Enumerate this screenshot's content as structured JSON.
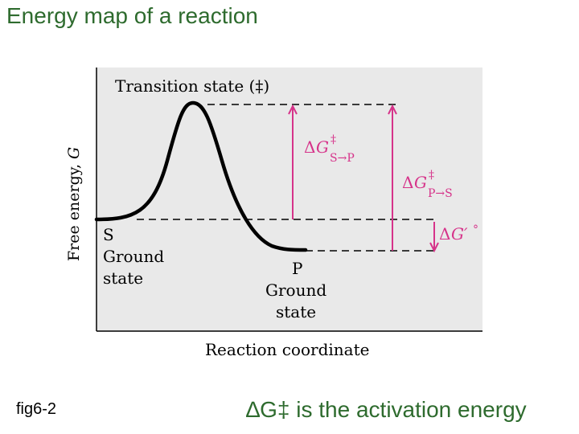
{
  "title": "Energy map of a reaction",
  "figure": {
    "y_axis_label_main": "Free energy, ",
    "y_axis_label_var": "G",
    "x_axis_label": "Reaction coordinate",
    "transition_state": "Transition state (‡)",
    "s_label": "S",
    "s_ground_line1": "Ground",
    "s_ground_line2": "state",
    "p_label": "P",
    "p_ground_line1": "Ground",
    "p_ground_line2": "state",
    "dg_s_to_p": {
      "delta": "Δ",
      "g": "G",
      "dagger": "‡",
      "sub": "S→P"
    },
    "dg_p_to_s": {
      "delta": "Δ",
      "g": "G",
      "dagger": "‡",
      "sub": "P→S"
    },
    "dg_standard": {
      "delta": "Δ",
      "g": "G′",
      "degree": "°"
    },
    "colors": {
      "panel": "#e9e9e9",
      "curve": "#000000",
      "arrow": "#d6338a",
      "title": "#2e6b2e"
    }
  },
  "fig_label": "fig6-2",
  "caption": "∆G‡ is the activation energy"
}
